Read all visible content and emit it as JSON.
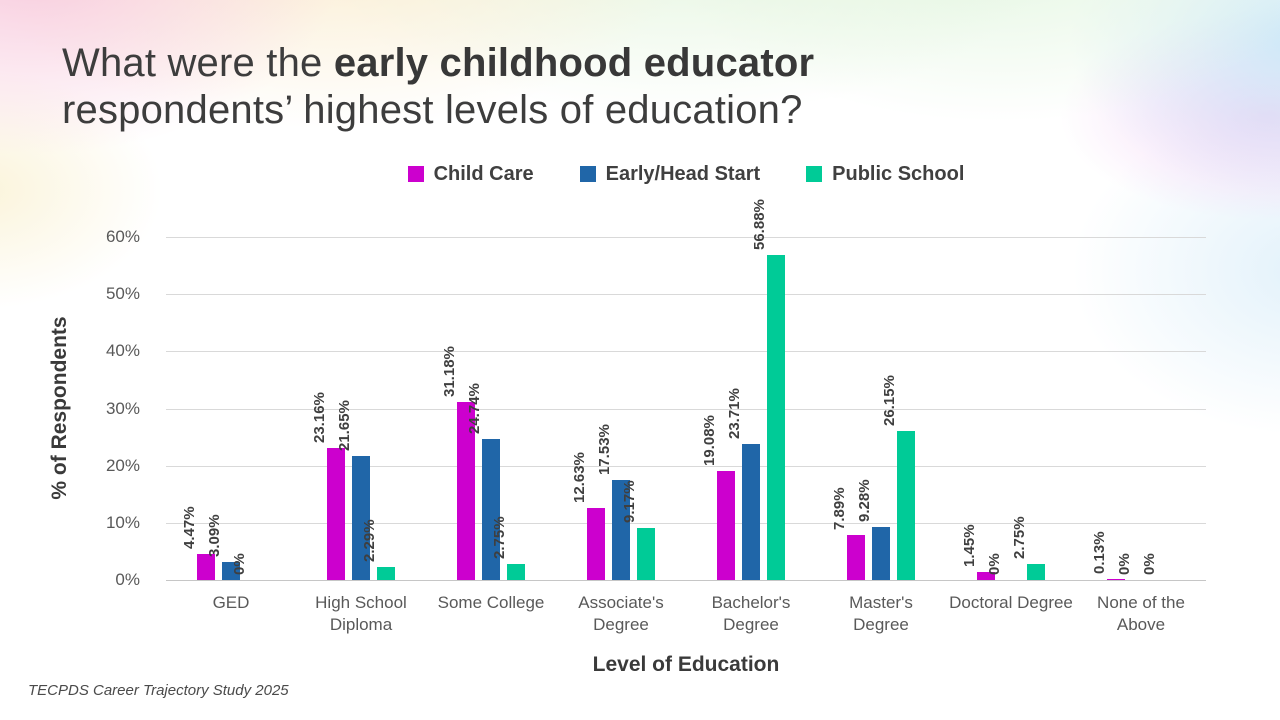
{
  "slide": {
    "title_prefix": "What were the ",
    "title_bold": "early childhood educator",
    "title_line2": "respondents’ highest levels of education?",
    "footer": "TECPDS Career Trajectory Study 2025"
  },
  "chart_data": {
    "type": "bar",
    "title": "",
    "xlabel": "Level of Education",
    "ylabel": "% of Respondents",
    "ylim": [
      0,
      60
    ],
    "ytick_step": 10,
    "yticks": [
      "0%",
      "10%",
      "20%",
      "30%",
      "40%",
      "50%",
      "60%"
    ],
    "grid": true,
    "legend_position": "top",
    "categories": [
      "GED",
      "High School Diploma",
      "Some College",
      "Associate's Degree",
      "Bachelor's Degree",
      "Master's Degree",
      "Doctoral Degree",
      "None of the Above"
    ],
    "series": [
      {
        "name": "Child Care",
        "color": "#cc00ce",
        "values": [
          4.47,
          23.16,
          31.18,
          12.63,
          19.08,
          7.89,
          1.45,
          0.13
        ]
      },
      {
        "name": "Early/Head Start",
        "color": "#2066a8",
        "values": [
          3.09,
          21.65,
          24.74,
          17.53,
          23.71,
          9.28,
          0,
          0
        ]
      },
      {
        "name": "Public School",
        "color": "#00cb97",
        "values": [
          0,
          2.29,
          2.75,
          9.17,
          56.88,
          26.15,
          2.75,
          0
        ]
      }
    ],
    "data_labels": [
      [
        "4.47%",
        "23.16%",
        "31.18%",
        "12.63%",
        "19.08%",
        "7.89%",
        "1.45%",
        "0.13%"
      ],
      [
        "3.09%",
        "21.65%",
        "24.74%",
        "17.53%",
        "23.71%",
        "9.28%",
        "0%",
        "0%"
      ],
      [
        "0%",
        "2.29%",
        "2.75%",
        "9.17%",
        "56.88%",
        "26.15%",
        "2.75%",
        "0%"
      ]
    ]
  }
}
